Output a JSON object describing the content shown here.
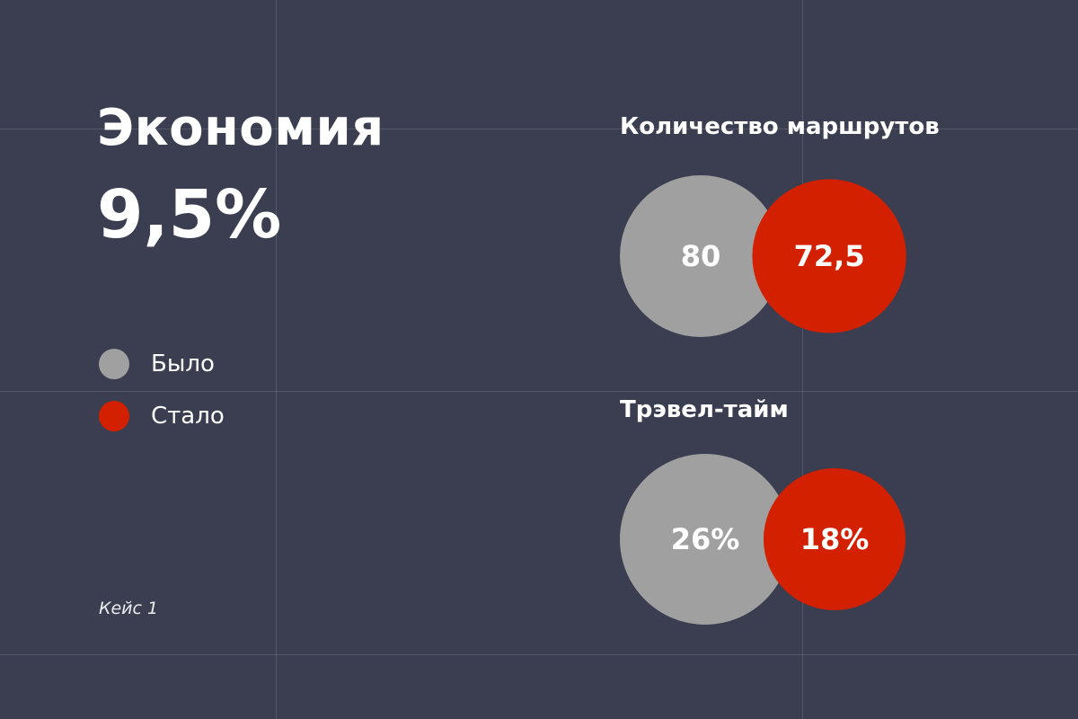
{
  "headline": {
    "title": "Экономия",
    "value": "9,5%"
  },
  "legend": [
    {
      "label": "Было",
      "color": "#a0a0a0"
    },
    {
      "label": "Стало",
      "color": "#d22000"
    }
  ],
  "footer": "Кейс 1",
  "chart_data": [
    {
      "type": "bubble",
      "title": "Количество маршрутов",
      "categories": [
        "Было",
        "Стало"
      ],
      "values": [
        80,
        72.5
      ],
      "labels": [
        "80",
        "72,5"
      ],
      "colors": [
        "#a0a0a0",
        "#d22000"
      ]
    },
    {
      "type": "bubble",
      "title": "Трэвел-тайм",
      "categories": [
        "Было",
        "Стало"
      ],
      "values": [
        26,
        18
      ],
      "labels": [
        "26%",
        "18%"
      ],
      "colors": [
        "#a0a0a0",
        "#d22000"
      ]
    }
  ]
}
